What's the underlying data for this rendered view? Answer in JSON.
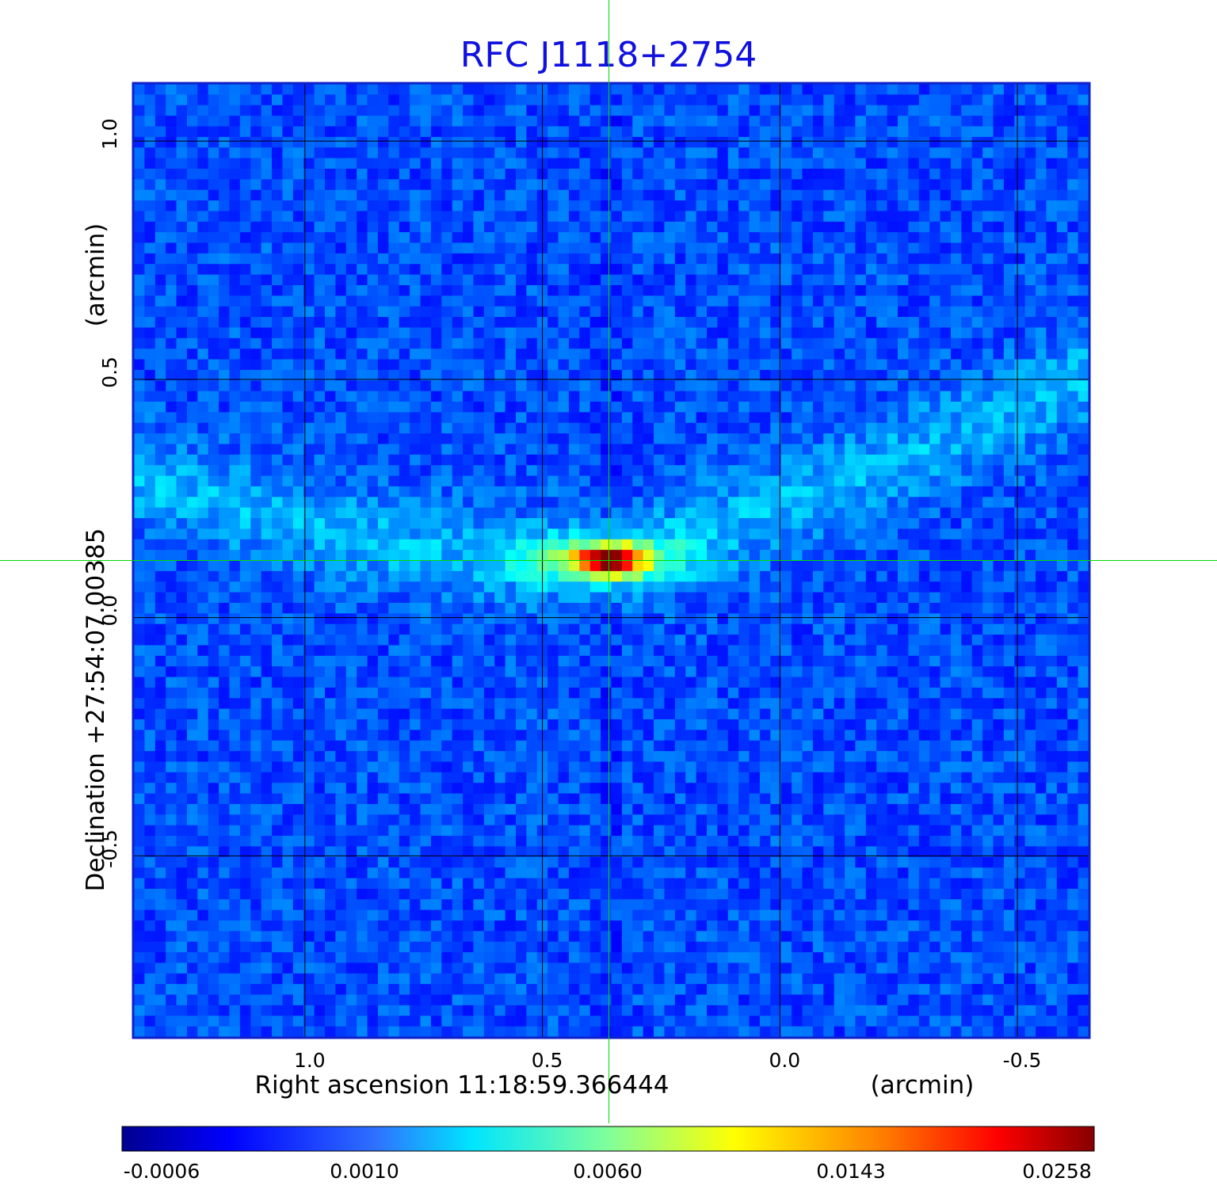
{
  "chart_data": {
    "type": "heatmap",
    "title": "RFC J1118+2754",
    "xlabel": "Right ascension  11:18:59.366444",
    "xlabel_unit": "(arcmin)",
    "ylabel": "Declination  +27:54:07.00385",
    "ylabel_unit": "(arcmin)",
    "x_axis": {
      "ticks": [
        1.0,
        0.5,
        0.0,
        -0.5
      ],
      "tick_labels": [
        "1.0",
        "0.5",
        "0.0",
        "-0.5"
      ],
      "range": [
        1.36,
        -0.65
      ],
      "direction": "decreasing-left-to-right"
    },
    "y_axis": {
      "ticks": [
        1.0,
        0.5,
        0.0,
        -0.5
      ],
      "tick_labels": [
        "1.0",
        "0.5",
        "0.0",
        "-0.5"
      ],
      "range": [
        -0.88,
        1.12
      ]
    },
    "grid": true,
    "crosshair": {
      "x": 0.36,
      "y": 0.12,
      "color": "#00dd00"
    },
    "colormap": "jet",
    "colorbar": {
      "tick_labels": [
        "-0.0006",
        "0.0010",
        "0.0060",
        "0.0143",
        "0.0258"
      ],
      "values": [
        -0.0006,
        0.001,
        0.006,
        0.0143,
        0.0258
      ],
      "scale": "nonlinear"
    },
    "features": {
      "peak": {
        "x": 0.36,
        "y": 0.12,
        "value": 0.0258
      },
      "jet_ridge": "extended emission running from lower-left (x≈1.3, y≈0.35) through the peak toward upper-right (x≈-0.65, y≈0.5)"
    },
    "frame_color": "#1020c8"
  }
}
